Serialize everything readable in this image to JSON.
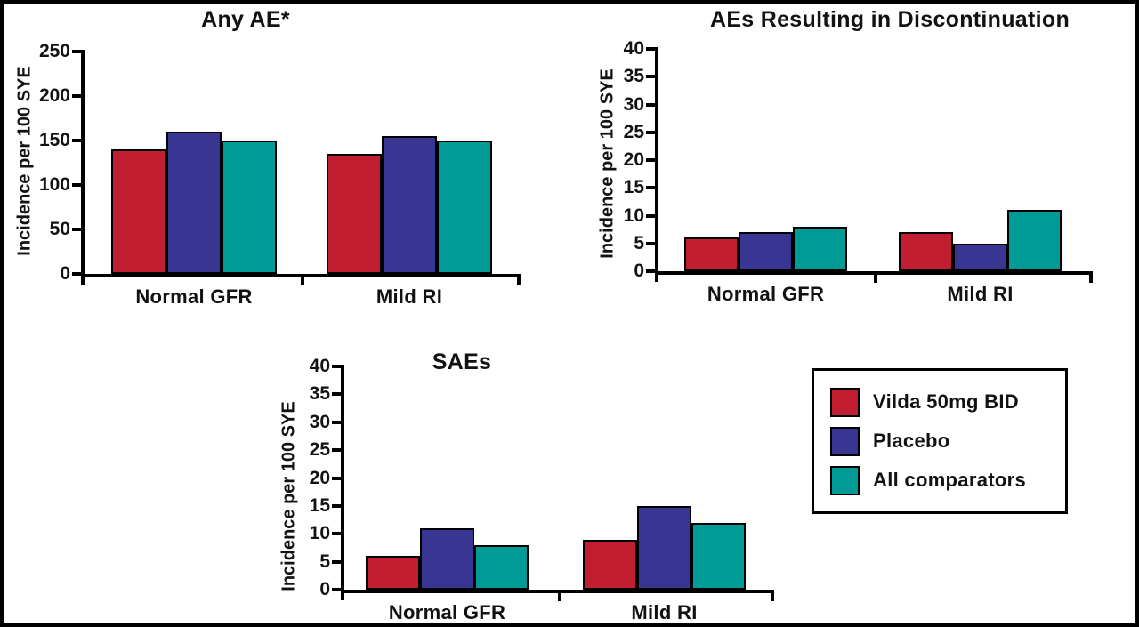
{
  "figure": {
    "background": "#ffffff",
    "frame_color": "#000000",
    "text_color": "#121212",
    "legend": {
      "position": "bottom-right",
      "items": [
        {
          "label": "Vilda 50mg BID",
          "color": "#c21e31"
        },
        {
          "label": "Placebo",
          "color": "#393592"
        },
        {
          "label": "All comparators",
          "color": "#009b97"
        }
      ]
    }
  },
  "chart_data": [
    {
      "type": "bar",
      "title": "Any AE*",
      "ylabel": "Incidence per 100 SYE",
      "xlabel": "",
      "ylim": [
        0,
        250
      ],
      "ytick_step": 50,
      "grid": false,
      "categories": [
        "Normal GFR",
        "Mild RI"
      ],
      "series": [
        {
          "name": "Vilda 50mg BID",
          "color": "#c21e31",
          "values": [
            140,
            135
          ]
        },
        {
          "name": "Placebo",
          "color": "#393592",
          "values": [
            160,
            155
          ]
        },
        {
          "name": "All comparators",
          "color": "#009b97",
          "values": [
            150,
            150
          ]
        }
      ]
    },
    {
      "type": "bar",
      "title": "AEs Resulting in Discontinuation",
      "ylabel": "Incidence per 100 SYE",
      "xlabel": "",
      "ylim": [
        0,
        40
      ],
      "ytick_step": 5,
      "grid": false,
      "categories": [
        "Normal GFR",
        "Mild RI"
      ],
      "series": [
        {
          "name": "Vilda 50mg BID",
          "color": "#c21e31",
          "values": [
            6,
            7
          ]
        },
        {
          "name": "Placebo",
          "color": "#393592",
          "values": [
            7,
            5
          ]
        },
        {
          "name": "All comparators",
          "color": "#009b97",
          "values": [
            8,
            11
          ]
        }
      ]
    },
    {
      "type": "bar",
      "title": "SAEs",
      "ylabel": "Incidence per 100 SYE",
      "xlabel": "",
      "ylim": [
        0,
        40
      ],
      "ytick_step": 5,
      "grid": false,
      "categories": [
        "Normal GFR",
        "Mild RI"
      ],
      "series": [
        {
          "name": "Vilda 50mg BID",
          "color": "#c21e31",
          "values": [
            6,
            9
          ]
        },
        {
          "name": "Placebo",
          "color": "#393592",
          "values": [
            11,
            15
          ]
        },
        {
          "name": "All comparators",
          "color": "#009b97",
          "values": [
            8,
            12
          ]
        }
      ]
    }
  ]
}
